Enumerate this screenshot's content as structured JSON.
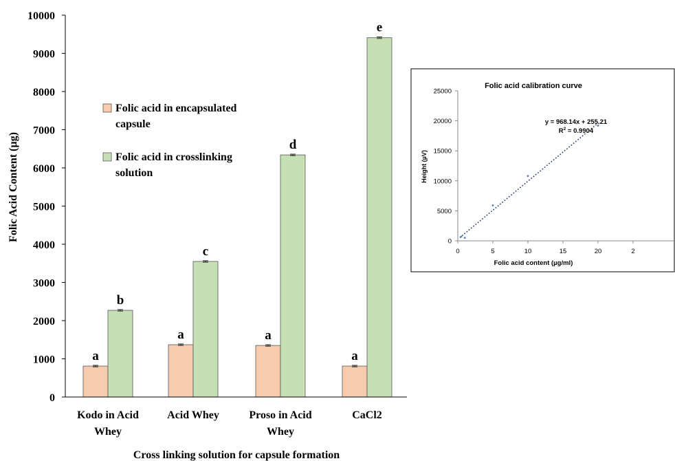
{
  "chart_data": [
    {
      "type": "bar",
      "ylabel": "Folic Acid Content (µg)",
      "xlabel": "Cross linking solution for capsule formation",
      "ylim": [
        0,
        10000
      ],
      "yticks": [
        "0",
        "1000",
        "2000",
        "3000",
        "4000",
        "5000",
        "6000",
        "7000",
        "8000",
        "9000",
        "10000"
      ],
      "categories": [
        [
          "Kodo in Acid",
          "Whey"
        ],
        [
          "Acid Whey"
        ],
        [
          "Proso in Acid",
          "Whey"
        ],
        [
          "CaCl2"
        ]
      ],
      "series": [
        {
          "name": "Folic acid in encapsulated capsule",
          "legend_lines": [
            "Folic acid in encapsulated",
            "capsule"
          ],
          "color": "#f8cbad",
          "values": [
            810,
            1370,
            1350,
            810
          ],
          "letters": [
            "a",
            "a",
            "a",
            "a"
          ]
        },
        {
          "name": "Folic acid in crosslinking solution",
          "legend_lines": [
            "Folic acid in crosslinking",
            "solution"
          ],
          "color": "#c5e0b4",
          "values": [
            2270,
            3550,
            6340,
            9410
          ],
          "letters": [
            "b",
            "c",
            "d",
            "e"
          ]
        }
      ],
      "legend": "upper-left inside plot",
      "grid": false,
      "error_bars": true
    },
    {
      "type": "scatter",
      "title": "Folic acid calibration curve",
      "xlabel": "Folic acid content (µg/ml)",
      "ylabel": "Height (µV)",
      "xlim": [
        0,
        25
      ],
      "ylim": [
        0,
        25000
      ],
      "xticks": [
        "0",
        "5",
        "10",
        "15",
        "20",
        "2"
      ],
      "yticks": [
        "0",
        "5000",
        "10000",
        "15000",
        "20000",
        "25000"
      ],
      "points": [
        {
          "x": 0.5,
          "y": 700
        },
        {
          "x": 1,
          "y": 500
        },
        {
          "x": 5,
          "y": 5900
        },
        {
          "x": 10,
          "y": 10800
        },
        {
          "x": 20,
          "y": 19200
        }
      ],
      "trendline": {
        "slope": 968.14,
        "intercept": 255.21,
        "x_range": [
          0.3,
          20
        ],
        "style": "dotted"
      },
      "equation": "y = 968.14x + 255.21",
      "r2_label": "R",
      "r2_sup": "2",
      "r2_value": " = 0.9904",
      "grid": false
    }
  ]
}
